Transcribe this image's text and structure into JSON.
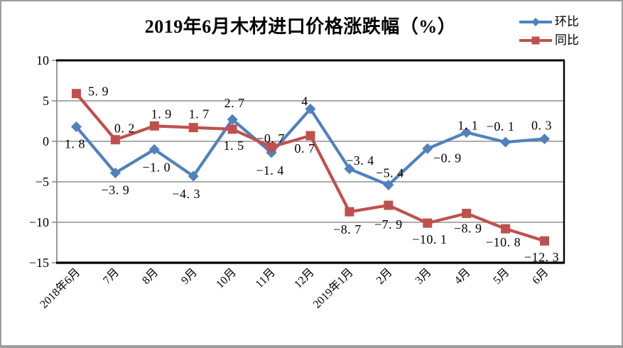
{
  "chart_data": {
    "type": "line",
    "title": "2019年6月木材进口价格涨跌幅（%）",
    "categories": [
      "2018年6月",
      "7月",
      "8月",
      "9月",
      "10月",
      "11月",
      "12月",
      "2019年1月",
      "2月",
      "3月",
      "4月",
      "5月",
      "6月"
    ],
    "series": [
      {
        "name": "环比",
        "color": "#4F81BD",
        "marker": "diamond",
        "values": [
          1.8,
          -3.9,
          -1.0,
          -4.3,
          2.7,
          -1.4,
          4,
          -3.4,
          -5.4,
          -0.9,
          1.1,
          -0.1,
          0.3
        ],
        "labels": [
          "1.8",
          "-3.9",
          "-1.0",
          "-4.3",
          "2.7",
          "-1.4",
          "4",
          "-3.4",
          "-5.4",
          "-0.9",
          "1.1",
          "-0.1",
          "0.3"
        ],
        "label_offsets": [
          [
            -2,
            24
          ],
          [
            0,
            24
          ],
          [
            3,
            25
          ],
          [
            -10,
            25
          ],
          [
            3,
            -23
          ],
          [
            -2,
            25
          ],
          [
            -8,
            -11
          ],
          [
            15,
            -12
          ],
          [
            2,
            -17
          ],
          [
            28,
            13
          ],
          [
            2,
            -10
          ],
          [
            -7,
            -22
          ],
          [
            -4,
            -19
          ]
        ]
      },
      {
        "name": "同比",
        "color": "#C0504D",
        "marker": "square",
        "values": [
          5.9,
          0.2,
          1.9,
          1.7,
          1.5,
          -0.7,
          0.7,
          -8.7,
          -7.9,
          -10.1,
          -8.9,
          -10.8,
          -12.3
        ],
        "labels": [
          "5.9",
          "0.2",
          "1.9",
          "1.7",
          "1.5",
          "-0.7",
          "0.7",
          "-8.7",
          "-7.9",
          "-10.1",
          "-8.9",
          "-10.8",
          "-12.3"
        ],
        "label_offsets": [
          [
            31,
            -3
          ],
          [
            13,
            -16
          ],
          [
            10,
            -17
          ],
          [
            8,
            -19
          ],
          [
            2,
            23
          ],
          [
            -1,
            -12
          ],
          [
            -8,
            18
          ],
          [
            -3,
            25
          ],
          [
            0,
            27
          ],
          [
            3,
            23
          ],
          [
            2,
            21
          ],
          [
            -3,
            19
          ],
          [
            -4,
            23
          ]
        ]
      }
    ],
    "ylim": [
      -15,
      10
    ],
    "yticks": [
      10,
      5,
      0,
      -5,
      -10,
      -15
    ],
    "grid": true,
    "legend_position": "top-right",
    "axis_colors": {
      "gridline": "#909090",
      "plot_border": "#000000",
      "y_axis_line": "#8c8c8c",
      "label_text": "#000000"
    }
  }
}
